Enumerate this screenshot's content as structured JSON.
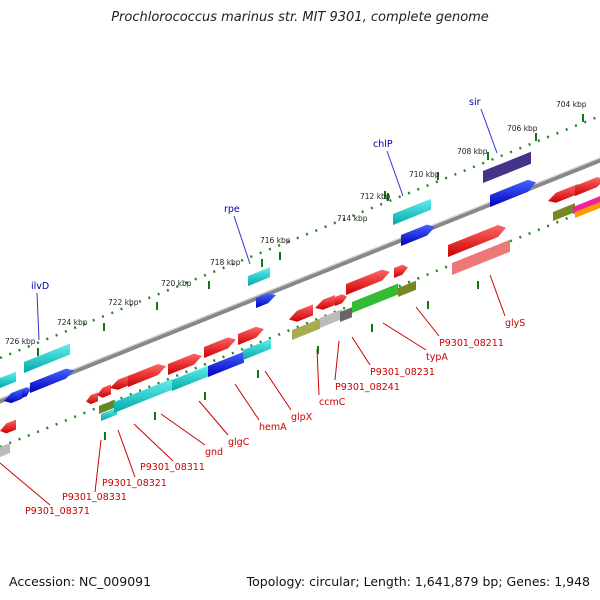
{
  "header": {
    "title": "Prochlorococcus marinus str. MIT 9301, complete genome"
  },
  "footer": {
    "accession": "Accession: NC_009091",
    "summary": "Topology: circular; Length: 1,641,879 bp; Genes: 1,948"
  },
  "scale": {
    "ticks": [
      {
        "label": "726 kbp"
      },
      {
        "label": "724 kbp"
      },
      {
        "label": "722 kbp"
      },
      {
        "label": "720 kbp"
      },
      {
        "label": "718 kbp"
      },
      {
        "label": "716 kbp"
      },
      {
        "label": "714 kbp"
      },
      {
        "label": "712 kbp"
      },
      {
        "label": "710 kbp"
      },
      {
        "label": "708 kbp"
      },
      {
        "label": "706 kbp"
      },
      {
        "label": "704 kbp"
      }
    ]
  },
  "genes_top": [
    {
      "name": "ilvD"
    },
    {
      "name": "rpe"
    },
    {
      "name": "chlP"
    },
    {
      "name": "sir"
    }
  ],
  "genes_bottom": [
    {
      "name": "P9301_08371"
    },
    {
      "name": "P9301_08331"
    },
    {
      "name": "P9301_08321"
    },
    {
      "name": "P9301_08311"
    },
    {
      "name": "gnd"
    },
    {
      "name": "glgC"
    },
    {
      "name": "hemA"
    },
    {
      "name": "glpX"
    },
    {
      "name": "ccmC"
    },
    {
      "name": "P9301_08241"
    },
    {
      "name": "P9301_08231"
    },
    {
      "name": "typA"
    },
    {
      "name": "P9301_08211"
    },
    {
      "name": "glyS"
    }
  ],
  "colors": {
    "backbone": "#808080",
    "forward_strand": "#ff0000",
    "reverse_strand": "#0000ff",
    "cyan": "#00cccc",
    "label_red": "#cc0000",
    "label_blue": "#0000aa"
  }
}
